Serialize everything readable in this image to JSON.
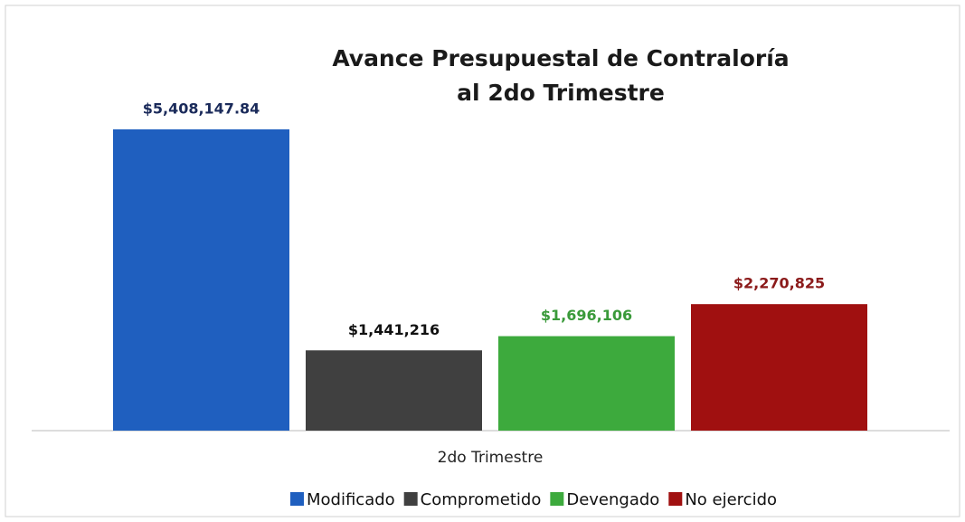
{
  "chart_data": {
    "type": "bar",
    "title": [
      "Avance Presupuestal de Contraloría",
      "al 2do Trimestre"
    ],
    "categories": [
      "2do Trimestre"
    ],
    "series": [
      {
        "name": "Modificado",
        "color": "#1f5fbf",
        "label_color": "#1a2a5a",
        "values": [
          5408147.84
        ],
        "value_labels": [
          "$5,408,147.84"
        ]
      },
      {
        "name": "Comprometido",
        "color": "#404040",
        "label_color": "#111111",
        "values": [
          1441216
        ],
        "value_labels": [
          "$1,441,216"
        ]
      },
      {
        "name": "Devengado",
        "color": "#3daa3d",
        "label_color": "#3a9a3a",
        "values": [
          1696106
        ],
        "value_labels": [
          "$1,696,106"
        ]
      },
      {
        "name": "No ejercido",
        "color": "#a01010",
        "label_color": "#8b1a1a",
        "values": [
          2270825
        ],
        "value_labels": [
          "$2,270,825"
        ]
      }
    ],
    "legend": "bottom"
  }
}
